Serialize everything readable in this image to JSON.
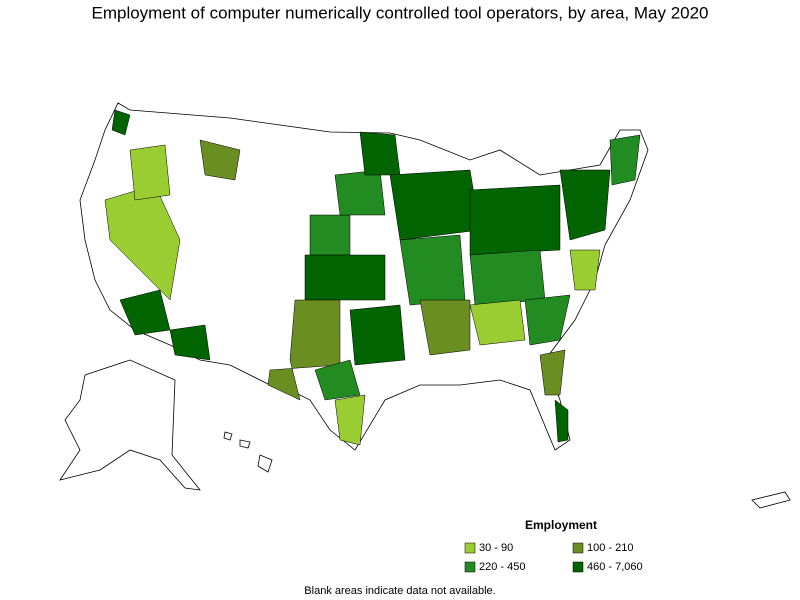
{
  "title": "Employment of computer numerically controlled tool operators, by area, May 2020",
  "legend": {
    "title": "Employment",
    "items": [
      {
        "label": "30 - 90",
        "color": "#9acd32"
      },
      {
        "label": "100 - 210",
        "color": "#6b8e23"
      },
      {
        "label": "220 - 450",
        "color": "#228b22"
      },
      {
        "label": "460 - 7,060",
        "color": "#006400"
      }
    ]
  },
  "footnote": "Blank areas indicate data not available."
}
